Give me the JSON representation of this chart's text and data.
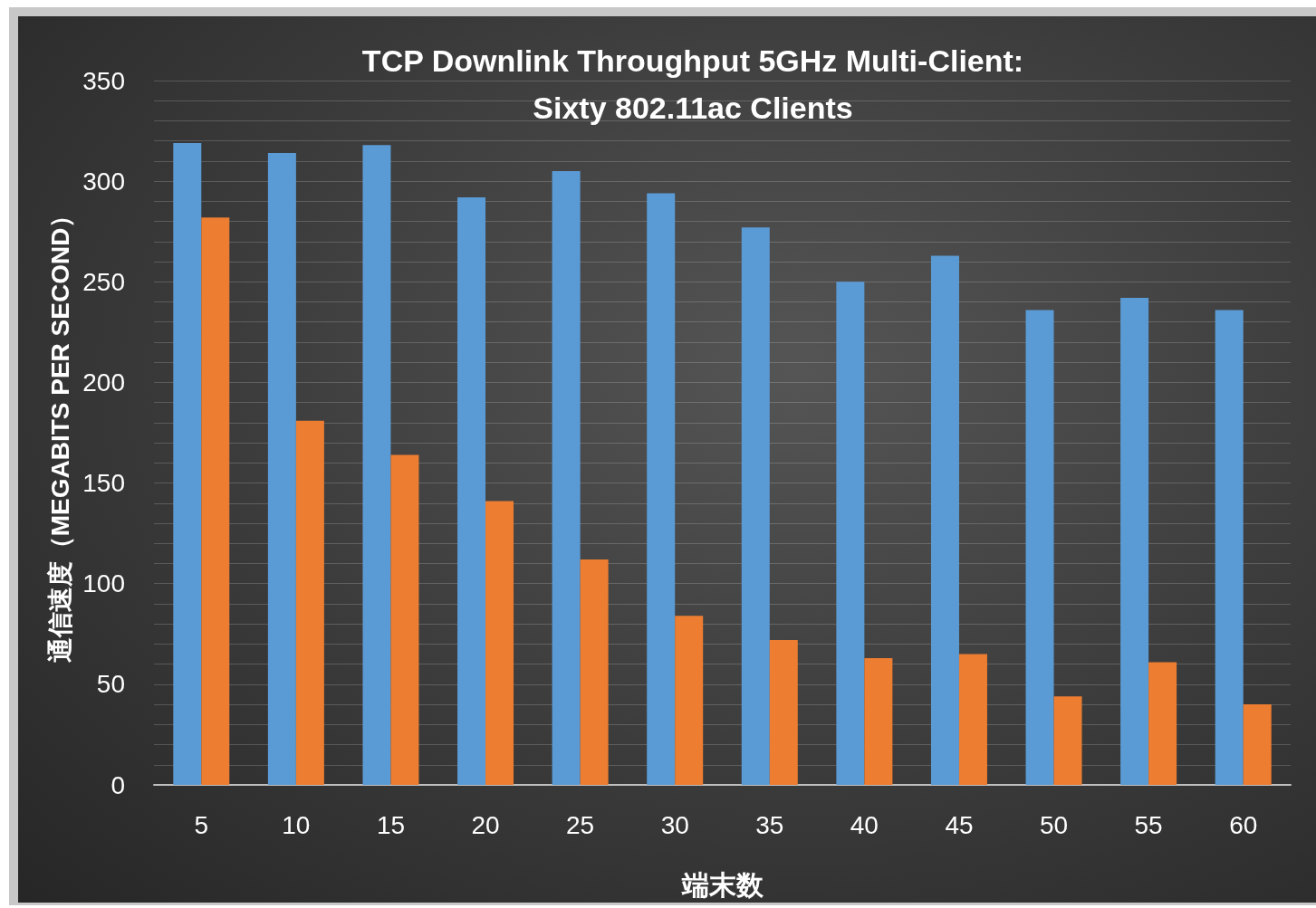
{
  "chart_data": {
    "type": "bar",
    "title": "TCP Downlink Throughput 5GHz Multi-Client:\nSixty 802.11ac Clients",
    "xlabel": "端末数",
    "ylabel": "通信速度（MEGABITS PER SECOND）",
    "categories": [
      "5",
      "10",
      "15",
      "20",
      "25",
      "30",
      "35",
      "40",
      "45",
      "50",
      "55",
      "60"
    ],
    "series": [
      {
        "color": "#5b9bd5",
        "values": [
          319,
          314,
          318,
          292,
          305,
          294,
          277,
          250,
          263,
          236,
          242,
          236
        ]
      },
      {
        "color": "#ed7d31",
        "values": [
          282,
          181,
          164,
          141,
          112,
          84,
          72,
          63,
          65,
          44,
          61,
          40
        ]
      }
    ],
    "ylim": [
      0,
      350
    ],
    "yticks": [
      0,
      {
        "value": 10,
        "label": null
      },
      {
        "value": 20,
        "label": null
      },
      {
        "value": 30,
        "label": null
      },
      {
        "value": 40,
        "label": null
      },
      50,
      {
        "value": 60,
        "label": null
      },
      {
        "value": 70,
        "label": null
      },
      {
        "value": 80,
        "label": null
      },
      {
        "value": 90,
        "label": null
      },
      100,
      {
        "value": 110,
        "label": null
      },
      {
        "value": 120,
        "label": null
      },
      {
        "value": 130,
        "label": null
      },
      {
        "value": 140,
        "label": null
      },
      150,
      {
        "value": 160,
        "label": null
      },
      {
        "value": 170,
        "label": null
      },
      {
        "value": 180,
        "label": null
      },
      {
        "value": 190,
        "label": null
      },
      200,
      {
        "value": 210,
        "label": null
      },
      {
        "value": 220,
        "label": null
      },
      {
        "value": 230,
        "label": null
      },
      {
        "value": 240,
        "label": null
      },
      250,
      {
        "value": 260,
        "label": null
      },
      {
        "value": 270,
        "label": null
      },
      {
        "value": 280,
        "label": null
      },
      {
        "value": 290,
        "label": null
      },
      300,
      {
        "value": 310,
        "label": null
      },
      {
        "value": 320,
        "label": null
      },
      {
        "value": 330,
        "label": null
      },
      {
        "value": 340,
        "label": null
      },
      350
    ],
    "grid": "y"
  }
}
